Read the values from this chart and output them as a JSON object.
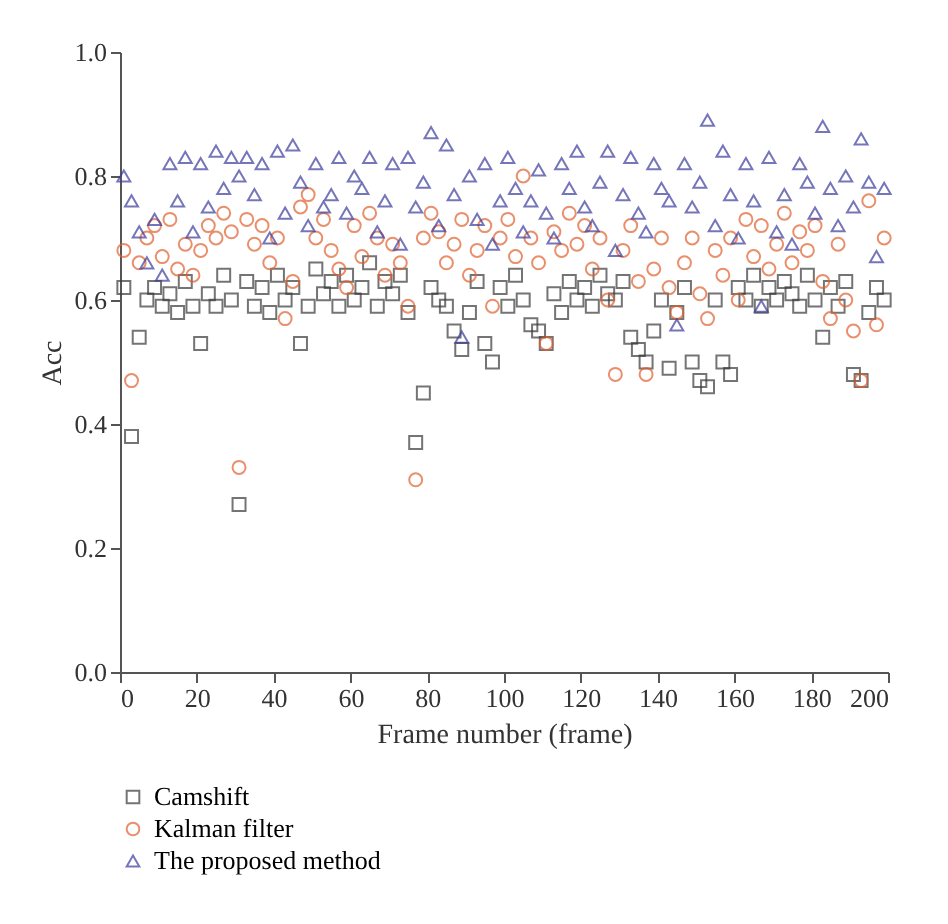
{
  "chart_data": {
    "type": "scatter",
    "xlabel": "Frame number (frame)",
    "ylabel": "Acc",
    "xlim": [
      0,
      200
    ],
    "xticks": [
      0,
      20,
      40,
      60,
      80,
      100,
      120,
      140,
      160,
      180,
      200
    ],
    "ylim": [
      0,
      1
    ],
    "yticks": [
      {
        "value": 0,
        "label": "0.0"
      },
      {
        "value": 0.2,
        "label": "0.2"
      },
      {
        "value": 0.4,
        "label": "0.4"
      },
      {
        "value": 0.6,
        "label": "0.6"
      },
      {
        "value": 0.8,
        "label": "0.8"
      },
      {
        "value": 1,
        "label": "1.0"
      }
    ],
    "grid": false,
    "legend": "bottom left",
    "series": [
      {
        "name": "Camshift",
        "color": "#3a3a3a",
        "marker": "square",
        "x": [
          1,
          3,
          5,
          7,
          9,
          11,
          13,
          15,
          17,
          19,
          21,
          23,
          25,
          27,
          29,
          31,
          33,
          35,
          37,
          39,
          41,
          43,
          45,
          47,
          49,
          51,
          53,
          55,
          57,
          59,
          61,
          63,
          65,
          67,
          69,
          71,
          73,
          75,
          77,
          79,
          81,
          83,
          85,
          87,
          89,
          91,
          93,
          95,
          97,
          99,
          101,
          103,
          105,
          107,
          109,
          111,
          113,
          115,
          117,
          119,
          121,
          123,
          125,
          127,
          129,
          131,
          133,
          135,
          137,
          139,
          141,
          143,
          145,
          147,
          149,
          151,
          153,
          155,
          157,
          159,
          161,
          163,
          165,
          167,
          169,
          171,
          173,
          175,
          177,
          179,
          181,
          183,
          185,
          187,
          189,
          191,
          193,
          195,
          197,
          199
        ],
        "values": [
          0.62,
          0.38,
          0.54,
          0.6,
          0.62,
          0.59,
          0.61,
          0.58,
          0.63,
          0.59,
          0.53,
          0.61,
          0.59,
          0.64,
          0.6,
          0.27,
          0.63,
          0.59,
          0.62,
          0.58,
          0.64,
          0.6,
          0.62,
          0.53,
          0.59,
          0.65,
          0.61,
          0.63,
          0.59,
          0.64,
          0.6,
          0.62,
          0.66,
          0.59,
          0.63,
          0.61,
          0.64,
          0.58,
          0.37,
          0.45,
          0.62,
          0.6,
          0.59,
          0.55,
          0.52,
          0.58,
          0.63,
          0.53,
          0.5,
          0.62,
          0.59,
          0.64,
          0.6,
          0.56,
          0.55,
          0.53,
          0.61,
          0.58,
          0.63,
          0.6,
          0.62,
          0.59,
          0.64,
          0.61,
          0.6,
          0.63,
          0.54,
          0.52,
          0.5,
          0.55,
          0.6,
          0.49,
          0.58,
          0.62,
          0.5,
          0.47,
          0.46,
          0.6,
          0.5,
          0.48,
          0.62,
          0.6,
          0.64,
          0.59,
          0.62,
          0.6,
          0.63,
          0.61,
          0.59,
          0.64,
          0.6,
          0.54,
          0.62,
          0.59,
          0.63,
          0.48,
          0.47,
          0.58,
          0.62,
          0.6
        ]
      },
      {
        "name": "Kalman filter",
        "color": "#e0602f",
        "marker": "circle",
        "x": [
          1,
          3,
          5,
          7,
          9,
          11,
          13,
          15,
          17,
          19,
          21,
          23,
          25,
          27,
          29,
          31,
          33,
          35,
          37,
          39,
          41,
          43,
          45,
          47,
          49,
          51,
          53,
          55,
          57,
          59,
          61,
          63,
          65,
          67,
          69,
          71,
          73,
          75,
          77,
          79,
          81,
          83,
          85,
          87,
          89,
          91,
          93,
          95,
          97,
          99,
          101,
          103,
          105,
          107,
          109,
          111,
          113,
          115,
          117,
          119,
          121,
          123,
          125,
          127,
          129,
          131,
          133,
          135,
          137,
          139,
          141,
          143,
          145,
          147,
          149,
          151,
          153,
          155,
          157,
          159,
          161,
          163,
          165,
          167,
          169,
          171,
          173,
          175,
          177,
          179,
          181,
          183,
          185,
          187,
          189,
          191,
          193,
          195,
          197,
          199
        ],
        "values": [
          0.68,
          0.47,
          0.66,
          0.7,
          0.72,
          0.67,
          0.73,
          0.65,
          0.69,
          0.64,
          0.68,
          0.72,
          0.7,
          0.74,
          0.71,
          0.33,
          0.73,
          0.69,
          0.72,
          0.66,
          0.7,
          0.57,
          0.63,
          0.75,
          0.77,
          0.7,
          0.73,
          0.68,
          0.65,
          0.62,
          0.72,
          0.67,
          0.74,
          0.7,
          0.64,
          0.69,
          0.66,
          0.59,
          0.31,
          0.7,
          0.74,
          0.71,
          0.66,
          0.69,
          0.73,
          0.64,
          0.68,
          0.72,
          0.59,
          0.7,
          0.73,
          0.67,
          0.8,
          0.7,
          0.66,
          0.53,
          0.71,
          0.68,
          0.74,
          0.69,
          0.72,
          0.65,
          0.7,
          0.6,
          0.48,
          0.68,
          0.72,
          0.63,
          0.48,
          0.65,
          0.7,
          0.62,
          0.58,
          0.66,
          0.7,
          0.61,
          0.57,
          0.68,
          0.64,
          0.7,
          0.6,
          0.73,
          0.67,
          0.72,
          0.65,
          0.69,
          0.74,
          0.66,
          0.71,
          0.68,
          0.72,
          0.63,
          0.57,
          0.69,
          0.6,
          0.55,
          0.47,
          0.76,
          0.56,
          0.7
        ]
      },
      {
        "name": "The proposed method",
        "color": "#3c3c9c",
        "marker": "triangle",
        "x": [
          1,
          3,
          5,
          7,
          9,
          11,
          13,
          15,
          17,
          19,
          21,
          23,
          25,
          27,
          29,
          31,
          33,
          35,
          37,
          39,
          41,
          43,
          45,
          47,
          49,
          51,
          53,
          55,
          57,
          59,
          61,
          63,
          65,
          67,
          69,
          71,
          73,
          75,
          77,
          79,
          81,
          83,
          85,
          87,
          89,
          91,
          93,
          95,
          97,
          99,
          101,
          103,
          105,
          107,
          109,
          111,
          113,
          115,
          117,
          119,
          121,
          123,
          125,
          127,
          129,
          131,
          133,
          135,
          137,
          139,
          141,
          143,
          145,
          147,
          149,
          151,
          153,
          155,
          157,
          159,
          161,
          163,
          165,
          167,
          169,
          171,
          173,
          175,
          177,
          179,
          181,
          183,
          185,
          187,
          189,
          191,
          193,
          195,
          197,
          199
        ],
        "values": [
          0.8,
          0.76,
          0.71,
          0.66,
          0.73,
          0.64,
          0.82,
          0.76,
          0.83,
          0.71,
          0.82,
          0.75,
          0.84,
          0.78,
          0.83,
          0.8,
          0.83,
          0.77,
          0.82,
          0.7,
          0.84,
          0.74,
          0.85,
          0.79,
          0.72,
          0.82,
          0.75,
          0.77,
          0.83,
          0.74,
          0.8,
          0.78,
          0.83,
          0.71,
          0.76,
          0.82,
          0.69,
          0.83,
          0.75,
          0.79,
          0.87,
          0.72,
          0.85,
          0.77,
          0.54,
          0.8,
          0.73,
          0.82,
          0.69,
          0.76,
          0.83,
          0.78,
          0.71,
          0.76,
          0.81,
          0.74,
          0.7,
          0.82,
          0.78,
          0.84,
          0.75,
          0.72,
          0.79,
          0.84,
          0.68,
          0.77,
          0.83,
          0.74,
          0.71,
          0.82,
          0.78,
          0.76,
          0.56,
          0.82,
          0.75,
          0.79,
          0.89,
          0.72,
          0.84,
          0.77,
          0.7,
          0.82,
          0.76,
          0.59,
          0.83,
          0.71,
          0.77,
          0.69,
          0.82,
          0.79,
          0.74,
          0.88,
          0.78,
          0.72,
          0.8,
          0.75,
          0.86,
          0.79,
          0.67,
          0.78
        ]
      }
    ]
  }
}
